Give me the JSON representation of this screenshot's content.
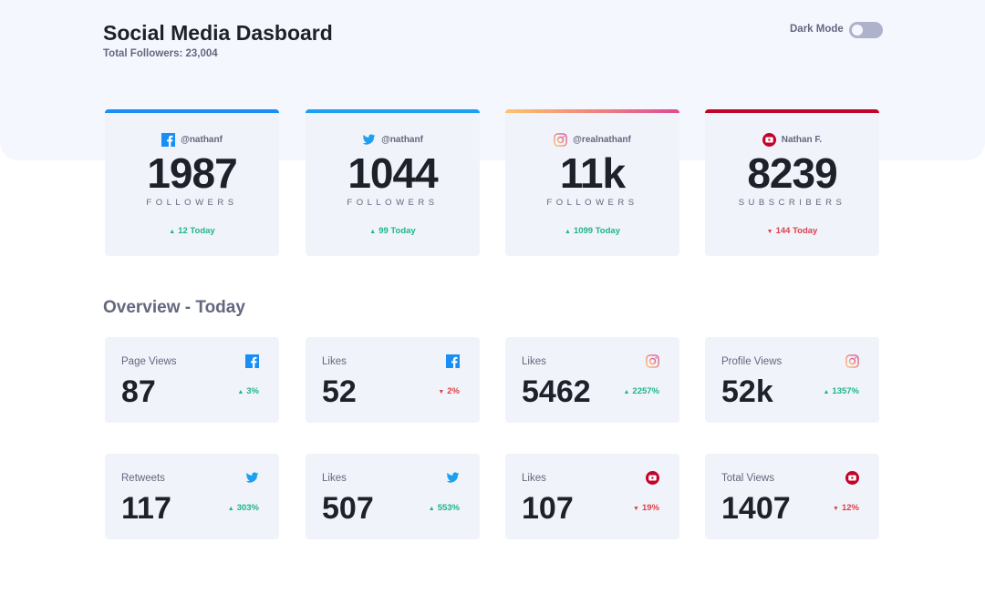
{
  "header": {
    "title": "Social Media Dasboard",
    "total_followers": "Total Followers: 23,004",
    "dark_mode_label": "Dark Mode",
    "dark_mode_on": false
  },
  "colors": {
    "facebook": "#198ff5",
    "twitter": "#1ca0f2",
    "instagram": [
      "#fdc468",
      "#df4996"
    ],
    "youtube": "#c4032a",
    "up": "#1eb589",
    "down": "#dc414c"
  },
  "followers": [
    {
      "platform": "facebook",
      "icon": "facebook-icon",
      "handle": "@nathanf",
      "count": "1987",
      "label": "FOLLOWERS",
      "change": "12 Today",
      "trend": "up"
    },
    {
      "platform": "twitter",
      "icon": "twitter-icon",
      "handle": "@nathanf",
      "count": "1044",
      "label": "FOLLOWERS",
      "change": "99 Today",
      "trend": "up"
    },
    {
      "platform": "instagram",
      "icon": "instagram-icon",
      "handle": "@realnathanf",
      "count": "11k",
      "label": "FOLLOWERS",
      "change": "1099 Today",
      "trend": "up"
    },
    {
      "platform": "youtube",
      "icon": "youtube-icon",
      "handle": "Nathan F.",
      "count": "8239",
      "label": "SUBSCRIBERS",
      "change": "144 Today",
      "trend": "down"
    }
  ],
  "overview": {
    "title": "Overview - Today",
    "items": [
      {
        "platform": "facebook",
        "title": "Page Views",
        "value": "87",
        "change": "3%",
        "trend": "up"
      },
      {
        "platform": "facebook",
        "title": "Likes",
        "value": "52",
        "change": "2%",
        "trend": "down"
      },
      {
        "platform": "instagram",
        "title": "Likes",
        "value": "5462",
        "change": "2257%",
        "trend": "up"
      },
      {
        "platform": "instagram",
        "title": "Profile Views",
        "value": "52k",
        "change": "1357%",
        "trend": "up"
      },
      {
        "platform": "twitter",
        "title": "Retweets",
        "value": "117",
        "change": "303%",
        "trend": "up"
      },
      {
        "platform": "twitter",
        "title": "Likes",
        "value": "507",
        "change": "553%",
        "trend": "up"
      },
      {
        "platform": "youtube",
        "title": "Likes",
        "value": "107",
        "change": "19%",
        "trend": "down"
      },
      {
        "platform": "youtube",
        "title": "Total Views",
        "value": "1407",
        "change": "12%",
        "trend": "down"
      }
    ]
  }
}
